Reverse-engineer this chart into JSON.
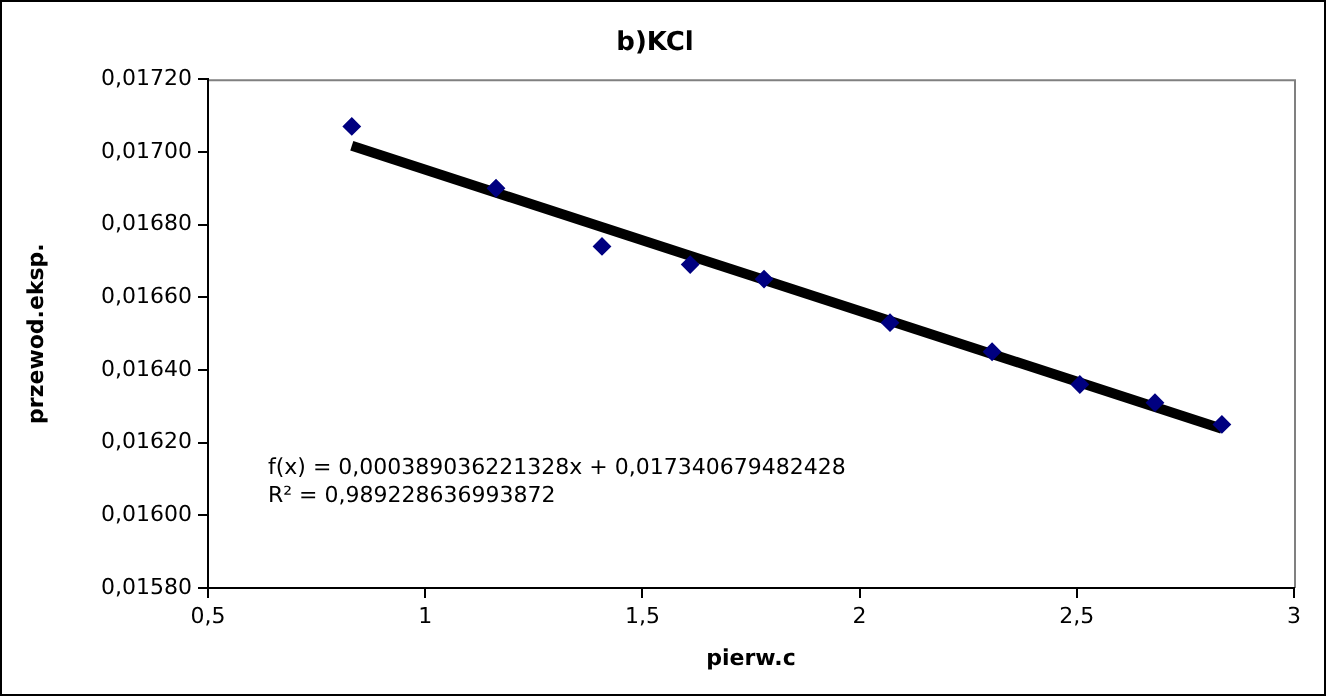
{
  "chart_data": {
    "type": "scatter",
    "title": "b)KCl",
    "xlabel": "pierw.c",
    "ylabel": "przewod.eksp.",
    "series": [
      {
        "color": "#000080",
        "marker": "diamond",
        "x": [
          0.831,
          1.163,
          1.407,
          1.61,
          1.78,
          2.07,
          2.305,
          2.507,
          2.68,
          2.834
        ],
        "values": [
          0.01707,
          0.0169,
          0.01674,
          0.01669,
          0.01665,
          0.01653,
          0.01645,
          0.01636,
          0.01631,
          0.01625
        ]
      },
      {
        "type": "line",
        "color": "#000000",
        "marker": "none",
        "line_style": "solid",
        "x": [
          0.831,
          2.834
        ],
        "values": [
          0.017017,
          0.016238
        ]
      }
    ],
    "xlim": [
      0.5,
      3
    ],
    "xticks": [
      {
        "value": 0.5,
        "label": "0,5"
      },
      1,
      {
        "value": 1.5,
        "label": "1,5"
      },
      2,
      {
        "value": 2.5,
        "label": "2,5"
      },
      3
    ],
    "ylim": [
      0.0158,
      0.0172
    ],
    "yticks": [
      {
        "value": 0.0158,
        "label": "0,01580"
      },
      {
        "value": 0.016,
        "label": "0,01600"
      },
      {
        "value": 0.0162,
        "label": "0,01620"
      },
      {
        "value": 0.0164,
        "label": "0,01640"
      },
      {
        "value": 0.0166,
        "label": "0,01660"
      },
      {
        "value": 0.0168,
        "label": "0,01680"
      },
      {
        "value": 0.017,
        "label": "0,01700"
      },
      {
        "value": 0.0172,
        "label": "0,01720"
      }
    ],
    "annotations": [
      "f(x) = 0,000389036221328x + 0,017340679482428",
      "R² = 0,989228636993872"
    ],
    "grid": false,
    "legend": false
  }
}
